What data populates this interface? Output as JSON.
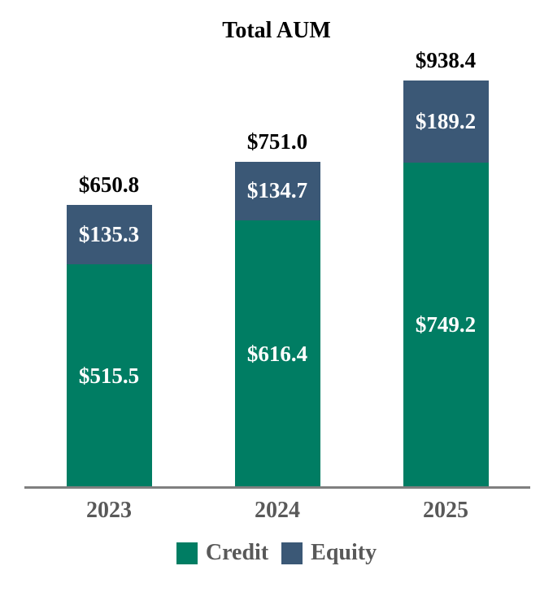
{
  "title": "Total AUM",
  "colors": {
    "credit": "#007D63",
    "equity": "#3B5876",
    "axis_line": "#7f7f7f",
    "year_label": "#595959",
    "legend_label": "#595959",
    "total_label": "#000000",
    "segment_label": "#ffffff",
    "background": "#ffffff"
  },
  "legend": {
    "items": [
      {
        "label": "Credit",
        "color": "#007D63"
      },
      {
        "label": "Equity",
        "color": "#3B5876"
      }
    ],
    "position": "bottom-center"
  },
  "chart_data": {
    "type": "bar",
    "stacked": true,
    "title": "Total AUM",
    "categories": [
      "2023",
      "2024",
      "2025"
    ],
    "series": [
      {
        "name": "Credit",
        "color": "#007D63",
        "values": [
          515.5,
          616.4,
          749.2
        ],
        "labels": [
          "$515.5",
          "$616.4",
          "$749.2"
        ]
      },
      {
        "name": "Equity",
        "color": "#3B5876",
        "values": [
          135.3,
          134.7,
          189.2
        ],
        "labels": [
          "$135.3",
          "$134.7",
          "$189.2"
        ]
      }
    ],
    "totals": [
      650.8,
      751.0,
      938.4
    ],
    "total_labels": [
      "$650.8",
      "$751.0",
      "$938.4"
    ],
    "xlabel": "",
    "ylabel": "",
    "ylim": [
      0,
      938.4
    ],
    "grid": false,
    "y_axis_visible": false,
    "legend_position": "bottom"
  }
}
